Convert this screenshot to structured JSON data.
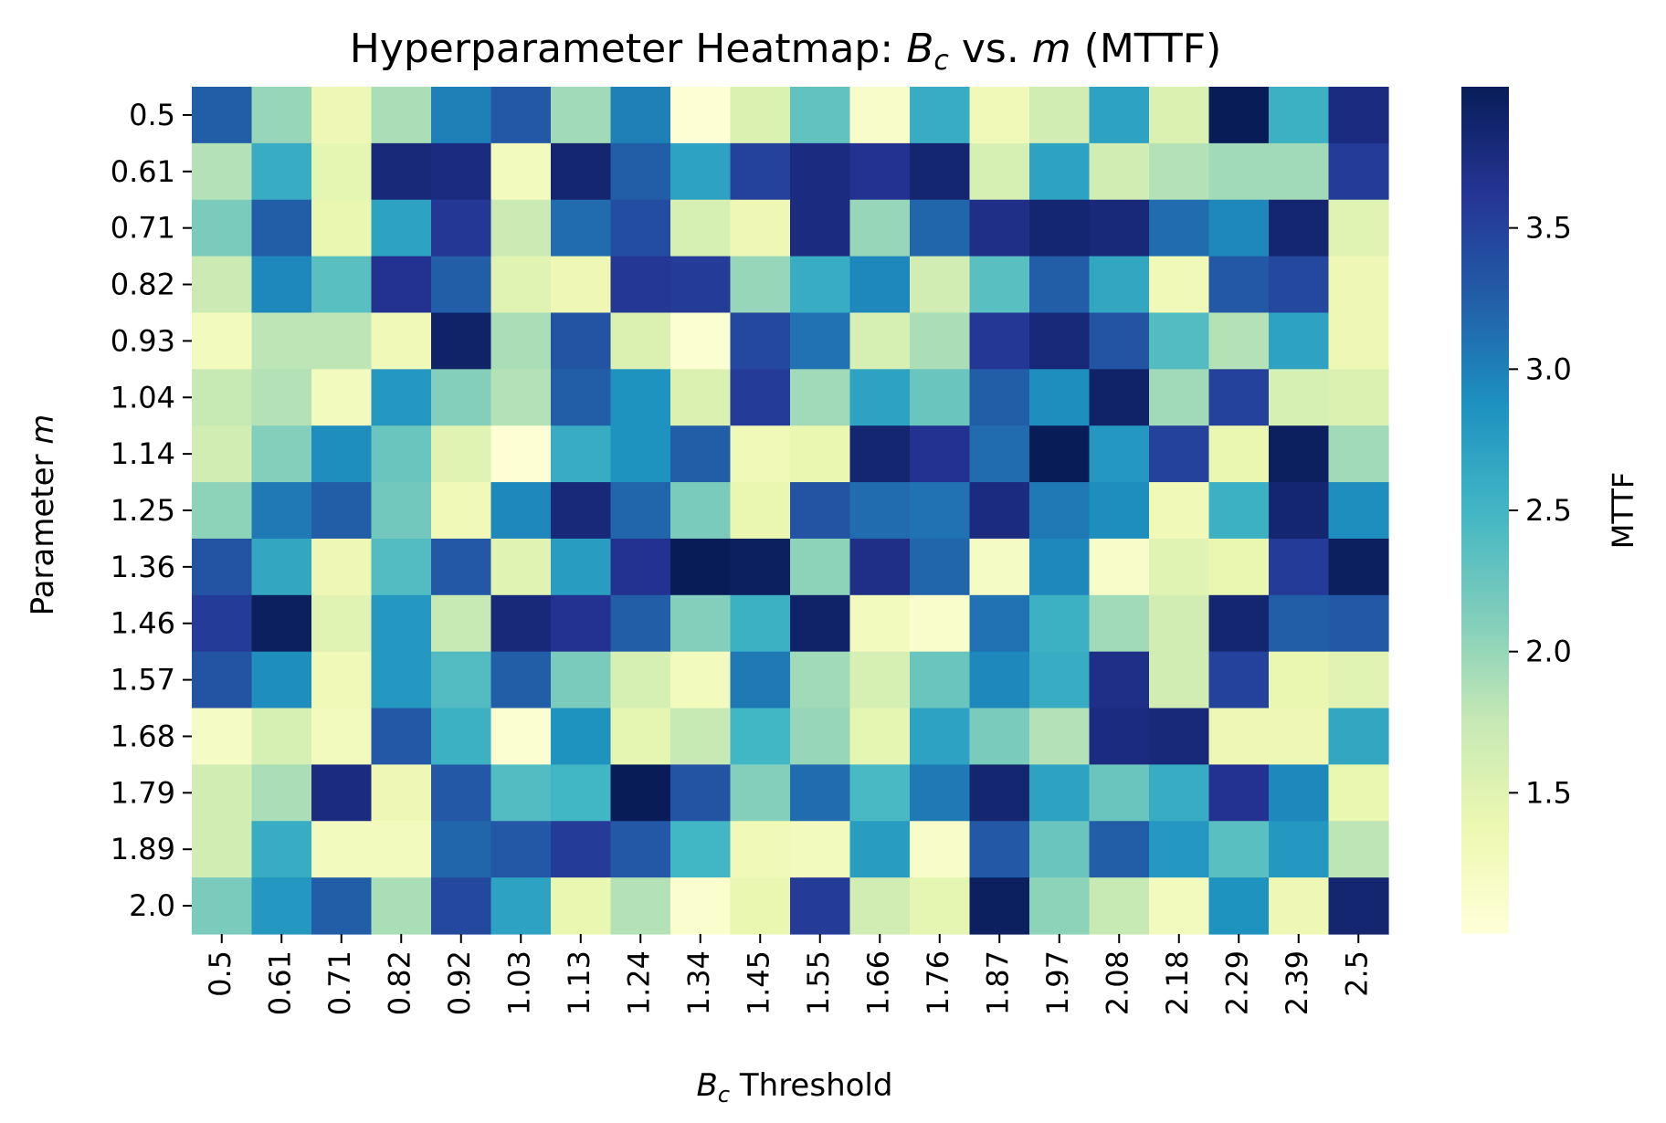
{
  "chart_data": {
    "type": "heatmap",
    "title": {
      "prefix": "Hyperparameter Heatmap: ",
      "var1": "B",
      "sub1": "c",
      "mid": " vs. ",
      "var2": "m",
      "suffix": " (MTTF)"
    },
    "xlabel": {
      "var": "B",
      "sub": "c",
      "suffix": " Threshold"
    },
    "ylabel": {
      "prefix": "Parameter ",
      "var": "m"
    },
    "x_categories": [
      "0.5",
      "0.61",
      "0.71",
      "0.82",
      "0.92",
      "1.03",
      "1.13",
      "1.24",
      "1.34",
      "1.45",
      "1.55",
      "1.66",
      "1.76",
      "1.87",
      "1.97",
      "2.08",
      "2.18",
      "2.29",
      "2.39",
      "2.5"
    ],
    "y_categories": [
      "0.5",
      "0.61",
      "0.71",
      "0.82",
      "0.93",
      "1.04",
      "1.14",
      "1.25",
      "1.36",
      "1.46",
      "1.57",
      "1.68",
      "1.79",
      "1.89",
      "2.0"
    ],
    "colorbar": {
      "label": "MTTF",
      "range": [
        1.0,
        4.0
      ],
      "ticks": [
        1.5,
        2.0,
        2.5,
        3.0,
        3.5
      ],
      "tick_labels": [
        "1.5",
        "2.0",
        "2.5",
        "3.0",
        "3.5"
      ],
      "colormap": "YlGnBu",
      "stops": [
        "#ffffd9",
        "#edf8b1",
        "#c7e9b4",
        "#7fcdbb",
        "#41b6c4",
        "#1d91c0",
        "#225ea8",
        "#253494",
        "#081d58"
      ]
    },
    "values": [
      [
        3.25,
        2.0,
        1.35,
        1.9,
        3.0,
        3.3,
        1.95,
        3.0,
        1.05,
        1.55,
        2.3,
        1.15,
        2.6,
        1.3,
        1.65,
        2.7,
        1.55,
        4.0,
        2.55,
        3.75
      ],
      [
        1.85,
        2.6,
        1.45,
        3.8,
        3.75,
        1.25,
        3.85,
        3.25,
        2.7,
        3.5,
        3.75,
        3.65,
        3.85,
        1.6,
        2.7,
        1.65,
        1.85,
        1.95,
        1.95,
        3.55
      ],
      [
        2.15,
        3.25,
        1.4,
        2.7,
        3.6,
        1.7,
        3.15,
        3.4,
        1.6,
        1.35,
        3.75,
        2.0,
        3.2,
        3.7,
        3.85,
        3.8,
        3.15,
        2.95,
        3.85,
        1.5
      ],
      [
        1.7,
        2.95,
        2.35,
        3.65,
        3.25,
        1.5,
        1.35,
        3.6,
        3.55,
        2.0,
        2.6,
        2.95,
        1.65,
        2.35,
        3.25,
        2.65,
        1.3,
        3.3,
        3.45,
        1.35
      ],
      [
        1.25,
        1.8,
        1.8,
        1.3,
        3.9,
        1.9,
        3.35,
        1.55,
        1.08,
        3.45,
        3.1,
        1.6,
        1.9,
        3.6,
        3.8,
        3.35,
        2.4,
        1.85,
        2.7,
        1.35
      ],
      [
        1.75,
        1.85,
        1.25,
        2.8,
        2.1,
        1.85,
        3.25,
        2.85,
        1.55,
        3.55,
        1.95,
        2.7,
        2.25,
        3.25,
        2.9,
        3.9,
        1.95,
        3.5,
        1.6,
        1.55
      ],
      [
        1.65,
        2.1,
        2.9,
        2.25,
        1.5,
        1.05,
        2.6,
        2.85,
        3.25,
        1.3,
        1.4,
        3.85,
        3.65,
        3.15,
        4.0,
        2.8,
        3.5,
        1.4,
        3.95,
        1.95
      ],
      [
        2.05,
        3.05,
        3.25,
        2.2,
        1.3,
        2.95,
        3.8,
        3.2,
        2.15,
        1.4,
        3.35,
        3.15,
        3.1,
        3.75,
        3.05,
        2.9,
        1.3,
        2.55,
        3.85,
        2.9
      ],
      [
        3.35,
        2.65,
        1.35,
        2.4,
        3.3,
        1.5,
        2.75,
        3.65,
        4.0,
        3.95,
        2.05,
        3.7,
        3.2,
        1.2,
        2.95,
        1.15,
        1.5,
        1.4,
        3.55,
        3.95
      ],
      [
        3.55,
        3.95,
        1.5,
        2.8,
        1.75,
        3.8,
        3.65,
        3.25,
        2.1,
        2.55,
        3.9,
        1.25,
        1.12,
        3.1,
        2.55,
        1.95,
        1.65,
        3.85,
        3.25,
        3.3
      ],
      [
        3.35,
        2.9,
        1.3,
        2.8,
        2.4,
        3.25,
        2.15,
        1.6,
        1.25,
        3.05,
        1.95,
        1.6,
        2.25,
        2.95,
        2.6,
        3.7,
        1.65,
        3.5,
        1.4,
        1.5
      ],
      [
        1.2,
        1.6,
        1.25,
        3.3,
        2.55,
        1.08,
        2.85,
        1.45,
        1.75,
        2.5,
        2.0,
        1.45,
        2.7,
        2.15,
        1.85,
        3.75,
        3.8,
        1.35,
        1.35,
        2.65
      ],
      [
        1.65,
        1.9,
        3.75,
        1.35,
        3.3,
        2.4,
        2.5,
        4.0,
        3.35,
        2.1,
        3.15,
        2.45,
        3.05,
        3.85,
        2.7,
        2.25,
        2.6,
        3.65,
        2.95,
        1.4
      ],
      [
        1.65,
        2.6,
        1.25,
        1.25,
        3.2,
        3.3,
        3.55,
        3.3,
        2.5,
        1.3,
        1.25,
        2.75,
        1.15,
        3.3,
        2.25,
        3.25,
        2.8,
        2.35,
        2.8,
        1.8
      ],
      [
        2.15,
        2.8,
        3.25,
        1.9,
        3.45,
        2.7,
        1.4,
        1.85,
        1.1,
        1.4,
        3.55,
        1.65,
        1.45,
        3.95,
        2.05,
        1.75,
        1.25,
        2.85,
        1.35,
        3.85
      ]
    ]
  }
}
